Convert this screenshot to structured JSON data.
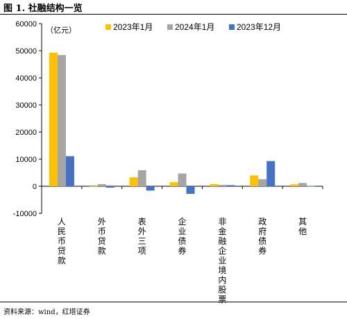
{
  "figure": {
    "title": "图 1. 社融结构一览",
    "source": "资料来源：wind，红塔证券"
  },
  "chart_data": {
    "type": "bar",
    "unit_label": "（亿元）",
    "categories": [
      "人民币贷款",
      "外币贷款",
      "表外三项",
      "企业债券",
      "非金融企业境内股票",
      "政府债券",
      "其他"
    ],
    "series": [
      {
        "name": "2023年1月",
        "color": "#FFC000",
        "values": [
          49300,
          -100,
          3300,
          1500,
          800,
          4000,
          700
        ]
      },
      {
        "name": "2024年1月",
        "color": "#A5A5A5",
        "values": [
          48400,
          800,
          5900,
          4700,
          500,
          2600,
          1200
        ]
      },
      {
        "name": "2023年12月",
        "color": "#4472C4",
        "values": [
          11100,
          -500,
          -1600,
          -2800,
          400,
          9300,
          100
        ]
      }
    ],
    "ylim": [
      -10000,
      60000
    ],
    "yticks": [
      -10000,
      0,
      10000,
      20000,
      30000,
      40000,
      50000,
      60000
    ],
    "grid": false,
    "legend": "top-right"
  }
}
